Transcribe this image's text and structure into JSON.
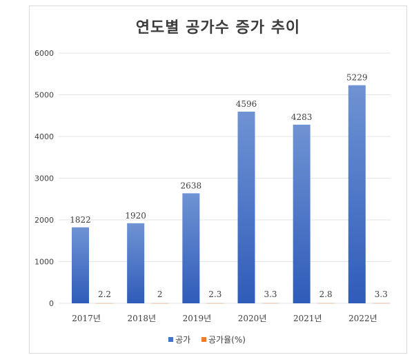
{
  "chart_data": {
    "type": "bar",
    "title": "연도별 공가수 증가 추이",
    "categories": [
      "2017년",
      "2018년",
      "2019년",
      "2020년",
      "2021년",
      "2022년"
    ],
    "series": [
      {
        "name": "공가",
        "values": [
          1822,
          1920,
          2638,
          4596,
          4283,
          5229
        ],
        "color": "#4472C4"
      },
      {
        "name": "공가율(%)",
        "values": [
          2.2,
          2,
          2.3,
          3.3,
          2.8,
          3.3
        ],
        "color": "#ED7D31"
      }
    ],
    "ylim": [
      0,
      6000
    ],
    "yticks": [
      "0",
      "1000",
      "2000",
      "3000",
      "4000",
      "5000",
      "6000"
    ],
    "grid": true,
    "legend_position": "bottom"
  }
}
